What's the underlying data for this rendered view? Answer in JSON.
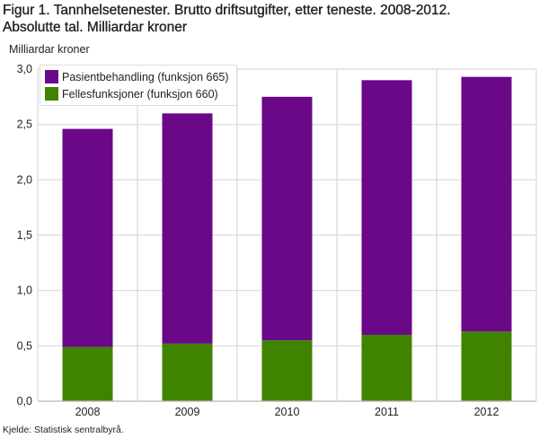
{
  "chart_data": {
    "type": "bar",
    "stacked": true,
    "title": "Figur 1. Tannhelsetenester. Brutto driftsutgifter, etter teneste. 2008-2012. Absolutte tal. Milliardar kroner",
    "title_lines": [
      "Figur 1. Tannhelsetenester. Brutto driftsutgifter, etter teneste. 2008-2012.",
      "Absolutte tal. Milliardar kroner"
    ],
    "ylabel": "Milliardar kroner",
    "xlabel": "",
    "ylim": [
      0,
      3.0
    ],
    "yticks": [
      "0,0",
      "0,5",
      "1,0",
      "1,5",
      "2,0",
      "2,5",
      "3,0"
    ],
    "ytick_values": [
      0,
      0.5,
      1.0,
      1.5,
      2.0,
      2.5,
      3.0
    ],
    "categories": [
      "2008",
      "2009",
      "2010",
      "2011",
      "2012"
    ],
    "series": [
      {
        "name": "Fellesfunksjoner (funksjon 660)",
        "color": "#3f8300",
        "values": [
          0.49,
          0.52,
          0.55,
          0.6,
          0.63
        ]
      },
      {
        "name": "Pasientbehandling (funksjon 665)",
        "color": "#6a0888",
        "values": [
          1.97,
          2.08,
          2.2,
          2.3,
          2.3
        ]
      }
    ],
    "legend_order": [
      1,
      0
    ],
    "legend_position": "top-left",
    "grid": true,
    "source": "Kjelde: Statistisk sentralbyrå."
  }
}
